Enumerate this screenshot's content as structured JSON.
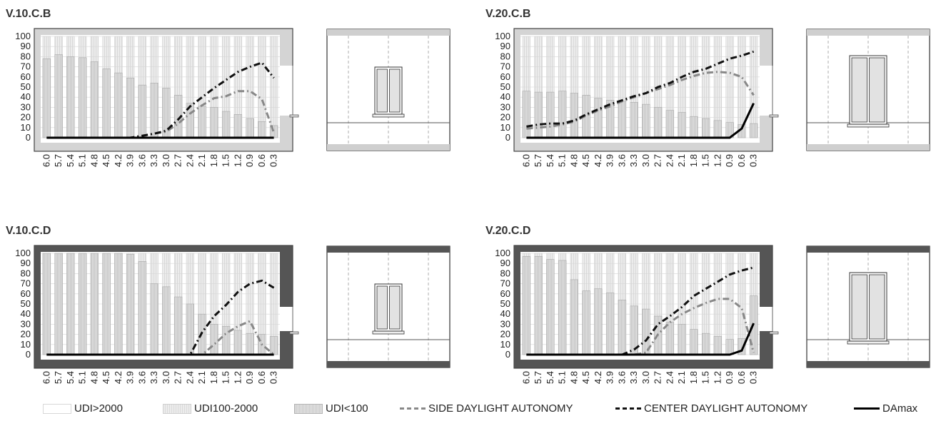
{
  "panels": [
    {
      "title": "V.10.C.B",
      "frame": "light",
      "window": "small"
    },
    {
      "title": "V.20.C.B",
      "frame": "light",
      "window": "large"
    },
    {
      "title": "V.10.C.D",
      "frame": "dark",
      "window": "small"
    },
    {
      "title": "V.20.C.D",
      "frame": "dark",
      "window": "large"
    }
  ],
  "legend": [
    {
      "label": "UDI>2000",
      "kind": "white"
    },
    {
      "label": "UDI100-2000",
      "kind": "light"
    },
    {
      "label": "UDI<100",
      "kind": "dot"
    },
    {
      "label": "SIDE DAYLIGHT AUTONOMY",
      "kind": "side"
    },
    {
      "label": "CENTER DAYLIGHT AUTONOMY",
      "kind": "center"
    },
    {
      "label": "DAmax",
      "kind": "da"
    }
  ],
  "colors": {
    "dark_frame": "#555555",
    "light_frame": "#d4d4d4",
    "side_line": "#888888",
    "center_line": "#111111",
    "damax_line": "#000000"
  },
  "chart_data": [
    {
      "type": "bar",
      "title": "V.10.C.B",
      "categories": [
        "6.0",
        "5.7",
        "5.4",
        "5.1",
        "4.8",
        "4.5",
        "4.2",
        "3.9",
        "3.6",
        "3.3",
        "3.0",
        "2.7",
        "2.4",
        "2.1",
        "1.8",
        "1.5",
        "1.2",
        "0.9",
        "0.6",
        "0.3"
      ],
      "yticks": [
        "0",
        "10",
        "20",
        "30",
        "40",
        "50",
        "60",
        "70",
        "80",
        "90",
        "100"
      ],
      "ylim": [
        0,
        100
      ],
      "udi_lt_100": [
        78,
        82,
        80,
        79,
        75,
        68,
        64,
        59,
        52,
        54,
        49,
        42,
        34,
        31,
        30,
        26,
        23,
        19,
        16,
        12
      ],
      "side_da": [
        0,
        0,
        0,
        0,
        0,
        0,
        0,
        0,
        2,
        4,
        6,
        14,
        24,
        32,
        39,
        41,
        46,
        46,
        38,
        5
      ],
      "center_da": [
        0,
        0,
        0,
        0,
        0,
        0,
        0,
        0,
        2,
        4,
        7,
        18,
        31,
        40,
        49,
        57,
        65,
        70,
        74,
        59
      ],
      "damax": [
        0,
        0,
        0,
        0,
        0,
        0,
        0,
        0,
        0,
        0,
        0,
        0,
        0,
        0,
        0,
        0,
        0,
        0,
        0,
        0
      ]
    },
    {
      "type": "bar",
      "title": "V.20.C.B",
      "categories": [
        "6.0",
        "5.7",
        "5.4",
        "5.1",
        "4.8",
        "4.5",
        "4.2",
        "3.9",
        "3.6",
        "3.3",
        "3.0",
        "2.7",
        "2.4",
        "2.1",
        "1.8",
        "1.5",
        "1.2",
        "0.9",
        "0.6",
        "0.3"
      ],
      "yticks": [
        "0",
        "10",
        "20",
        "30",
        "40",
        "50",
        "60",
        "70",
        "80",
        "90",
        "100"
      ],
      "ylim": [
        0,
        100
      ],
      "udi_lt_100": [
        46,
        45,
        45,
        46,
        44,
        42,
        39,
        37,
        36,
        35,
        33,
        30,
        27,
        25,
        21,
        19,
        17,
        15,
        13,
        14
      ],
      "side_da": [
        9,
        10,
        11,
        13,
        16,
        22,
        27,
        31,
        36,
        40,
        44,
        48,
        52,
        57,
        61,
        64,
        65,
        64,
        60,
        42
      ],
      "center_da": [
        11,
        13,
        14,
        14,
        17,
        23,
        28,
        33,
        37,
        41,
        44,
        50,
        54,
        60,
        65,
        68,
        73,
        78,
        81,
        85
      ],
      "damax": [
        0,
        0,
        0,
        0,
        0,
        0,
        0,
        0,
        0,
        0,
        0,
        0,
        0,
        0,
        0,
        0,
        0,
        0,
        9,
        34
      ]
    },
    {
      "type": "bar",
      "title": "V.10.C.D",
      "categories": [
        "6.0",
        "5.7",
        "5.4",
        "5.1",
        "4.8",
        "4.5",
        "4.2",
        "3.9",
        "3.6",
        "3.3",
        "3.0",
        "2.7",
        "2.4",
        "2.1",
        "1.8",
        "1.5",
        "1.2",
        "0.9",
        "0.6",
        "0.3"
      ],
      "yticks": [
        "0",
        "10",
        "20",
        "30",
        "40",
        "50",
        "60",
        "70",
        "80",
        "90",
        "100"
      ],
      "ylim": [
        0,
        100
      ],
      "udi_lt_100": [
        100,
        100,
        100,
        100,
        100,
        100,
        100,
        99,
        92,
        70,
        67,
        57,
        50,
        40,
        30,
        28,
        24,
        21,
        20,
        18
      ],
      "side_da": [
        0,
        0,
        0,
        0,
        0,
        0,
        0,
        0,
        0,
        0,
        0,
        0,
        0,
        0,
        10,
        21,
        28,
        33,
        10,
        0
      ],
      "center_da": [
        0,
        0,
        0,
        0,
        0,
        0,
        0,
        0,
        0,
        0,
        0,
        0,
        0,
        22,
        38,
        49,
        62,
        70,
        73,
        66
      ],
      "damax": [
        0,
        0,
        0,
        0,
        0,
        0,
        0,
        0,
        0,
        0,
        0,
        0,
        0,
        0,
        0,
        0,
        0,
        0,
        0,
        0
      ]
    },
    {
      "type": "bar",
      "title": "V.20.C.D",
      "categories": [
        "6.0",
        "5.7",
        "5.4",
        "5.1",
        "4.8",
        "4.5",
        "4.2",
        "3.9",
        "3.6",
        "3.3",
        "3.0",
        "2.7",
        "2.4",
        "2.1",
        "1.8",
        "1.5",
        "1.2",
        "0.9",
        "0.6",
        "0.3"
      ],
      "yticks": [
        "0",
        "10",
        "20",
        "30",
        "40",
        "50",
        "60",
        "70",
        "80",
        "90",
        "100"
      ],
      "ylim": [
        0,
        100
      ],
      "udi_lt_100": [
        97,
        97,
        94,
        93,
        74,
        63,
        65,
        61,
        54,
        48,
        45,
        38,
        32,
        30,
        25,
        21,
        18,
        15,
        16,
        58
      ],
      "side_da": [
        0,
        0,
        0,
        0,
        0,
        0,
        0,
        0,
        0,
        0,
        2,
        20,
        32,
        40,
        46,
        51,
        55,
        55,
        46,
        2
      ],
      "center_da": [
        0,
        0,
        0,
        0,
        0,
        0,
        0,
        0,
        0,
        5,
        14,
        30,
        38,
        47,
        58,
        65,
        72,
        79,
        83,
        86
      ],
      "damax": [
        0,
        0,
        0,
        0,
        0,
        0,
        0,
        0,
        0,
        0,
        0,
        0,
        0,
        0,
        0,
        0,
        0,
        0,
        4,
        31
      ]
    }
  ]
}
